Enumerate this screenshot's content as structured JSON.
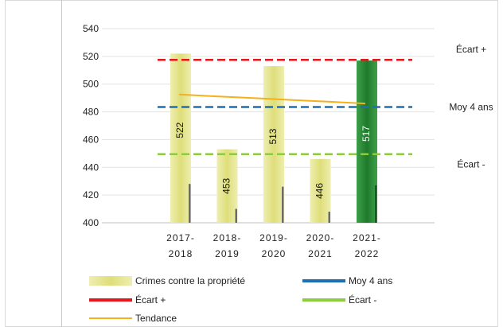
{
  "chart_data": {
    "type": "bar",
    "categories": [
      [
        "2017-",
        "2018"
      ],
      [
        "2018-",
        "2019"
      ],
      [
        "2019-",
        "2020"
      ],
      [
        "2020-",
        "2021"
      ],
      [
        "2021-",
        "2022"
      ]
    ],
    "series": [
      {
        "name": "Crimes contre la propriété",
        "values": [
          522,
          453,
          513,
          446,
          517
        ],
        "highlight_index": 4,
        "color": "#e6e690",
        "highlight_color": "#2e8b3a"
      }
    ],
    "shadow_bar_values": [
      428,
      410,
      426,
      408,
      427
    ],
    "reference_lines": [
      {
        "name": "Écart +",
        "value": 517.5,
        "color": "#e8151b",
        "style": "dashed",
        "right_label": "Écart +"
      },
      {
        "name": "Moy 4 ans",
        "value": 483.5,
        "color": "#1f6fb3",
        "style": "dashed",
        "right_label": "Moy 4 ans"
      },
      {
        "name": "Écart -",
        "value": 449.5,
        "color": "#8ccc3e",
        "style": "dashed",
        "right_label": "Écart -"
      }
    ],
    "trend": {
      "name": "Tendance",
      "color": "#f5b01a",
      "values": [
        492.5,
        491.2,
        489.9,
        488.6,
        487.3,
        486.0
      ]
    },
    "ylim": [
      400,
      540
    ],
    "yticks": [
      400,
      420,
      440,
      460,
      480,
      500,
      520,
      540
    ],
    "grid": true,
    "legend": [
      {
        "label": "Crimes contre la propriété",
        "kind": "bar",
        "color": "#e6e690"
      },
      {
        "label": "Moy 4 ans",
        "kind": "line",
        "color": "#1f6fb3"
      },
      {
        "label": "Écart +",
        "kind": "line",
        "color": "#e8151b"
      },
      {
        "label": "Écart -",
        "kind": "line",
        "color": "#8ccc3e"
      },
      {
        "label": "Tendance",
        "kind": "thinline",
        "color": "#f5b01a"
      }
    ],
    "legend_position": "bottom"
  }
}
